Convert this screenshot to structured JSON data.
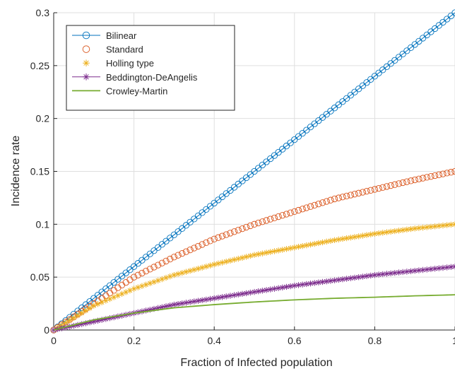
{
  "chart_data": {
    "type": "line",
    "title": "",
    "xlabel": "Fraction of Infected population",
    "ylabel": "Incidence rate",
    "xlim": [
      0,
      1
    ],
    "ylim": [
      0,
      0.3
    ],
    "x_ticks": [
      0,
      0.2,
      0.4,
      0.6,
      0.8,
      1
    ],
    "x_tick_labels": [
      "0",
      "0.2",
      "0.4",
      "0.6",
      "0.8",
      "1"
    ],
    "y_ticks": [
      0,
      0.05,
      0.1,
      0.15,
      0.2,
      0.25,
      0.3
    ],
    "y_tick_labels": [
      "0",
      "0.05",
      "0.1",
      "0.15",
      "0.2",
      "0.25",
      "0.3"
    ],
    "grid": true,
    "legend_position": "top-left",
    "x": [
      0,
      0.1,
      0.2,
      0.3,
      0.4,
      0.5,
      0.6,
      0.7,
      0.8,
      0.9,
      1.0
    ],
    "series": [
      {
        "name": "Bilinear",
        "color": "#0072BD",
        "marker": "circle",
        "line": true,
        "values": [
          0,
          0.03,
          0.06,
          0.09,
          0.12,
          0.15,
          0.18,
          0.21,
          0.24,
          0.27,
          0.3
        ]
      },
      {
        "name": "Standard",
        "color": "#D95319",
        "marker": "circle",
        "line": false,
        "values": [
          0,
          0.025,
          0.05,
          0.069,
          0.086,
          0.1,
          0.112,
          0.124,
          0.133,
          0.142,
          0.15
        ]
      },
      {
        "name": "Holling type",
        "color": "#EDB120",
        "marker": "asterisk",
        "line": false,
        "values": [
          0,
          0.023,
          0.039,
          0.052,
          0.062,
          0.071,
          0.078,
          0.085,
          0.091,
          0.096,
          0.1
        ]
      },
      {
        "name": "Beddington-DeAngelis",
        "color": "#7E2F8E",
        "marker": "asterisk",
        "line": true,
        "values": [
          0,
          0.008,
          0.016,
          0.024,
          0.03,
          0.036,
          0.042,
          0.047,
          0.052,
          0.056,
          0.06
        ]
      },
      {
        "name": "Crowley-Martin",
        "color": "#77AC30",
        "marker": "none",
        "line": true,
        "values": [
          0,
          0.0096,
          0.016,
          0.021,
          0.024,
          0.0265,
          0.0285,
          0.03,
          0.031,
          0.0323,
          0.0333
        ]
      }
    ]
  }
}
